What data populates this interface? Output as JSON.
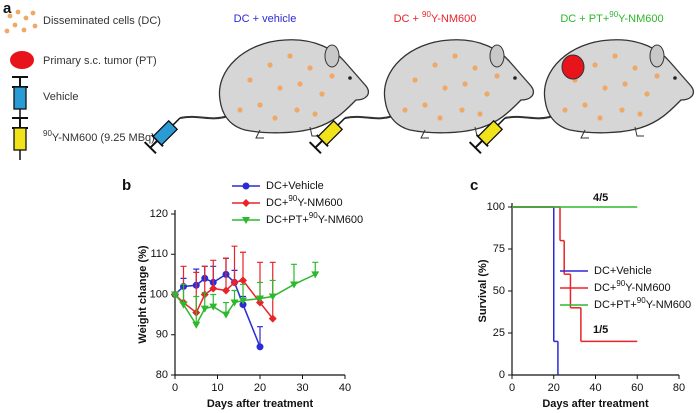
{
  "schematic": {
    "panel_label": "a",
    "legend": [
      "Disseminated cells (DC)",
      "Primary s.c. tumor (PT)",
      "Vehicle",
      [
        "90",
        "Y-NM600 (9.25 MBq)"
      ]
    ],
    "groups": [
      {
        "label": [
          "DC + vehicle"
        ],
        "color": "#2a2ad6"
      },
      {
        "label": [
          "DC + ",
          "90",
          "Y-NM600"
        ],
        "color": "#e8232a"
      },
      {
        "label": [
          "DC + PT+",
          "90",
          "Y-NM600"
        ],
        "color": "#2db82d"
      }
    ]
  },
  "chart_data": [
    {
      "type": "line",
      "panel_label": "b",
      "xlabel": "Days after treatment",
      "ylabel": "Weight change (%)",
      "xlim": [
        0,
        40
      ],
      "xticks": [
        0,
        10,
        20,
        30,
        40
      ],
      "ylim": [
        80,
        120
      ],
      "yticks": [
        80,
        90,
        100,
        110,
        120
      ],
      "legend": "upper right",
      "series": [
        {
          "name": "DC+Vehicle",
          "color": "#2a2ad6",
          "marker": "circle",
          "x": [
            0,
            2,
            5,
            7,
            9,
            12,
            14,
            16,
            20
          ],
          "values": [
            100,
            102,
            102.3,
            104,
            103,
            105,
            103,
            97.5,
            87
          ],
          "errors": [
            0,
            2,
            4,
            3,
            4,
            4,
            3,
            2,
            5
          ]
        },
        {
          "name": [
            "DC+",
            "90",
            "Y-NM600"
          ],
          "color": "#e8232a",
          "marker": "diamond",
          "x": [
            0,
            2,
            5,
            7,
            9,
            12,
            14,
            16,
            20,
            23
          ],
          "values": [
            100,
            98,
            95.5,
            100,
            101.5,
            101,
            103,
            103.5,
            98,
            94
          ],
          "errors": [
            0,
            9,
            10,
            7,
            7,
            8,
            9,
            7,
            10,
            14
          ]
        },
        {
          "name": [
            "DC+PT+",
            "90",
            "Y-NM600"
          ],
          "color": "#2db82d",
          "marker": "triangle-down",
          "x": [
            0,
            2,
            5,
            7,
            9,
            12,
            14,
            16,
            20,
            23,
            28,
            33
          ],
          "values": [
            100,
            97.5,
            92.5,
            96.5,
            97,
            95,
            98,
            98.5,
            99,
            99.5,
            102.5,
            105
          ],
          "errors": [
            0,
            5,
            7,
            4,
            3,
            3,
            3,
            4,
            4,
            4,
            5,
            3
          ]
        }
      ]
    },
    {
      "type": "step",
      "panel_label": "c",
      "xlabel": "Days after treatment",
      "ylabel": "Survival (%)",
      "xlim": [
        0,
        80
      ],
      "xticks": [
        0,
        20,
        40,
        60,
        80
      ],
      "ylim": [
        0,
        100
      ],
      "yticks": [
        0,
        25,
        50,
        75,
        100
      ],
      "legend": "center right",
      "annotations": [
        "4/5",
        "1/5"
      ],
      "series": [
        {
          "name": "DC+Vehicle",
          "color": "#2a2ad6",
          "x": [
            0,
            20,
            22
          ],
          "values": [
            100,
            20,
            0
          ]
        },
        {
          "name": [
            "DC+",
            "90",
            "Y-NM600"
          ],
          "color": "#e8232a",
          "x": [
            0,
            23,
            25,
            28,
            33,
            60
          ],
          "values": [
            100,
            80,
            60,
            40,
            20,
            20
          ]
        },
        {
          "name": [
            "DC+PT+",
            "90",
            "Y-NM600"
          ],
          "color": "#2db82d",
          "x": [
            0,
            60
          ],
          "values": [
            100,
            100
          ]
        }
      ]
    }
  ]
}
